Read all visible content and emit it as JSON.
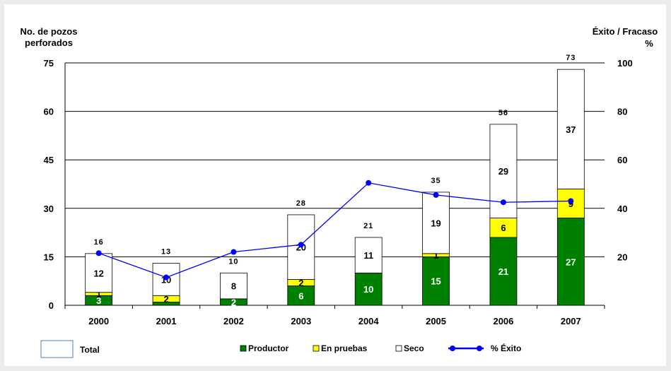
{
  "chart_data": {
    "type": "bar",
    "stacked": true,
    "categories": [
      "2000",
      "2001",
      "2002",
      "2003",
      "2004",
      "2005",
      "2006",
      "2007"
    ],
    "series": [
      {
        "name": "Productor",
        "color": "#008000",
        "values": [
          3,
          1,
          2,
          6,
          10,
          15,
          21,
          27
        ]
      },
      {
        "name": "En pruebas",
        "color": "#ffff00",
        "values": [
          1,
          2,
          0,
          2,
          0,
          1,
          6,
          9
        ]
      },
      {
        "name": "Seco",
        "color": "#ffffff",
        "values": [
          12,
          10,
          8,
          20,
          11,
          19,
          29,
          37
        ]
      }
    ],
    "segment_labels": [
      [
        "3",
        "1",
        "12"
      ],
      [
        "",
        "2",
        "10"
      ],
      [
        "2",
        "",
        "8"
      ],
      [
        "6",
        "2",
        "20"
      ],
      [
        "10",
        "",
        "11"
      ],
      [
        "15",
        "1",
        "19"
      ],
      [
        "21",
        "6",
        "29"
      ],
      [
        "27",
        "9",
        "37"
      ]
    ],
    "totals": [
      16,
      13,
      10,
      28,
      21,
      35,
      56,
      73
    ],
    "line_series": {
      "name": "% Éxito",
      "color": "#0000ff",
      "axis": "right",
      "values": [
        21.5,
        11.5,
        22,
        25,
        50.5,
        45.5,
        42.5,
        43
      ]
    },
    "ylabel": "No. de pozos\nperforados",
    "ylabel_right": "Éxito / Fracaso\n%",
    "ylim": [
      0,
      75
    ],
    "yticks": [
      0,
      15,
      30,
      45,
      60,
      75
    ],
    "ylim_right": [
      0,
      100
    ],
    "yticks_right": [
      20,
      40,
      60,
      80,
      100
    ],
    "grid": true,
    "legend": {
      "placement": "bottom",
      "total_label": "Total",
      "items": [
        "Productor",
        "En pruebas",
        "Seco",
        "% Éxito"
      ]
    }
  }
}
